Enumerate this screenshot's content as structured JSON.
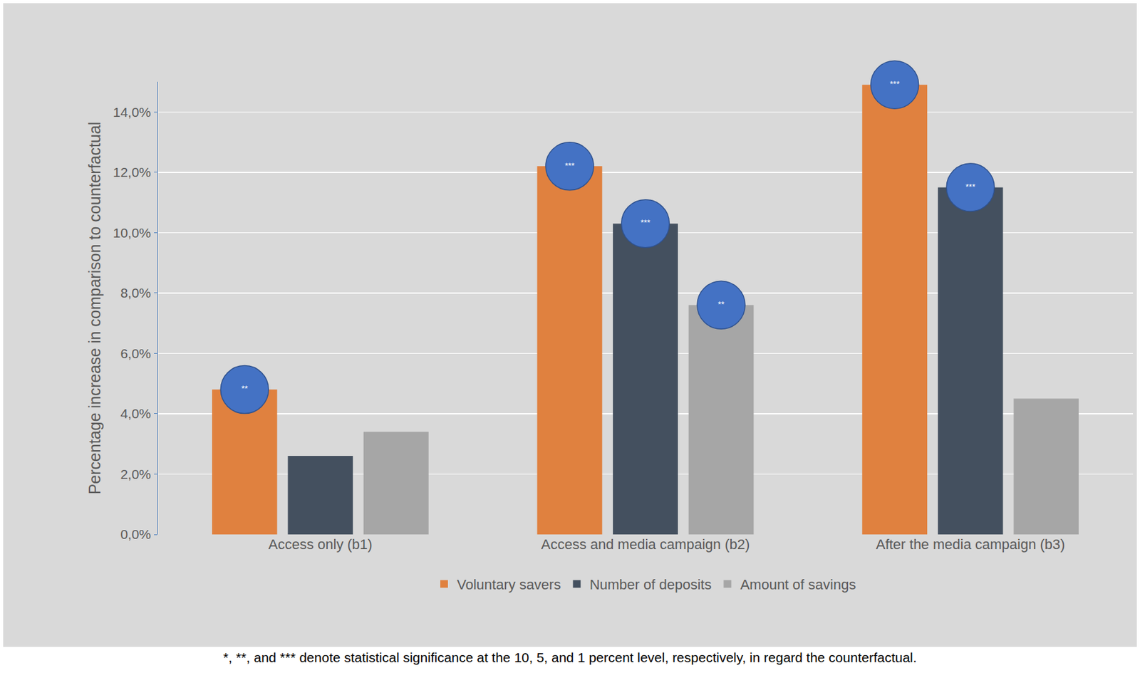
{
  "chart_data": {
    "type": "bar",
    "categories": [
      "Access only (b1)",
      "Access and media campaign (b2)",
      "After the media campaign (b3)"
    ],
    "series": [
      {
        "name": "Voluntary savers",
        "color": "#e0813f",
        "values": [
          4.8,
          12.2,
          14.9
        ],
        "significance": [
          "**",
          "***",
          "***"
        ]
      },
      {
        "name": "Number of deposits",
        "color": "#44505f",
        "values": [
          2.6,
          10.3,
          11.5
        ],
        "significance": [
          null,
          "***",
          "***"
        ]
      },
      {
        "name": "Amount of savings",
        "color": "#a6a6a6",
        "values": [
          3.4,
          7.6,
          4.5
        ],
        "significance": [
          null,
          "**",
          null
        ]
      }
    ],
    "y_label": "Percentage increase in comparison to counterfactual",
    "ylim": [
      0,
      15
    ],
    "yticks": [
      {
        "value": 0,
        "label": "0,0%"
      },
      {
        "value": 2,
        "label": "2,0%"
      },
      {
        "value": 4,
        "label": "4,0%"
      },
      {
        "value": 6,
        "label": "6,0%"
      },
      {
        "value": 8,
        "label": "8,0%"
      },
      {
        "value": 10,
        "label": "10,0%"
      },
      {
        "value": 12,
        "label": "12,0%"
      },
      {
        "value": 14,
        "label": "14,0%"
      }
    ],
    "grid": true,
    "legend": "bottom",
    "footnote": "*, **, and *** denote statistical significance at the 10, 5, and 1 percent level, respectively, in regard the counterfactual."
  }
}
